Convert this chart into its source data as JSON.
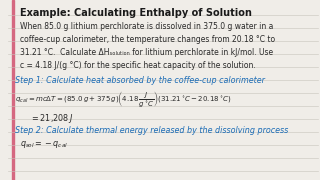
{
  "title": "Example: Calculating Enthalpy of Solution",
  "bg_color": "#f0ede8",
  "title_color": "#1a1a1a",
  "step_color": "#1a6bb5",
  "text_color": "#2a2a2a",
  "left_bar_color": "#d4607a",
  "body_lines": [
    "When 85.0 g lithium perchlorate is dissolved in 375.0 g water in a",
    "coffee-cup calorimeter, the temperature changes from 20.18 °C to",
    "31.21 °C.  Calculate ΔHₛₒₗᵤₜᵢₒₙ for lithium perchlorate in kJ/mol. Use",
    "c = 4.18 J/(g °C) for the specific heat capacity of the solution."
  ],
  "step1_text": "Step 1: Calculate heat absorbed by the coffee-cup calorimeter",
  "step2_text": "Step 2: Calculate thermal energy released by the dissolving process",
  "eq1b": "= 21,208 J",
  "line_color": "#c8c4bc",
  "figsize": [
    3.2,
    1.8
  ],
  "dpi": 100
}
